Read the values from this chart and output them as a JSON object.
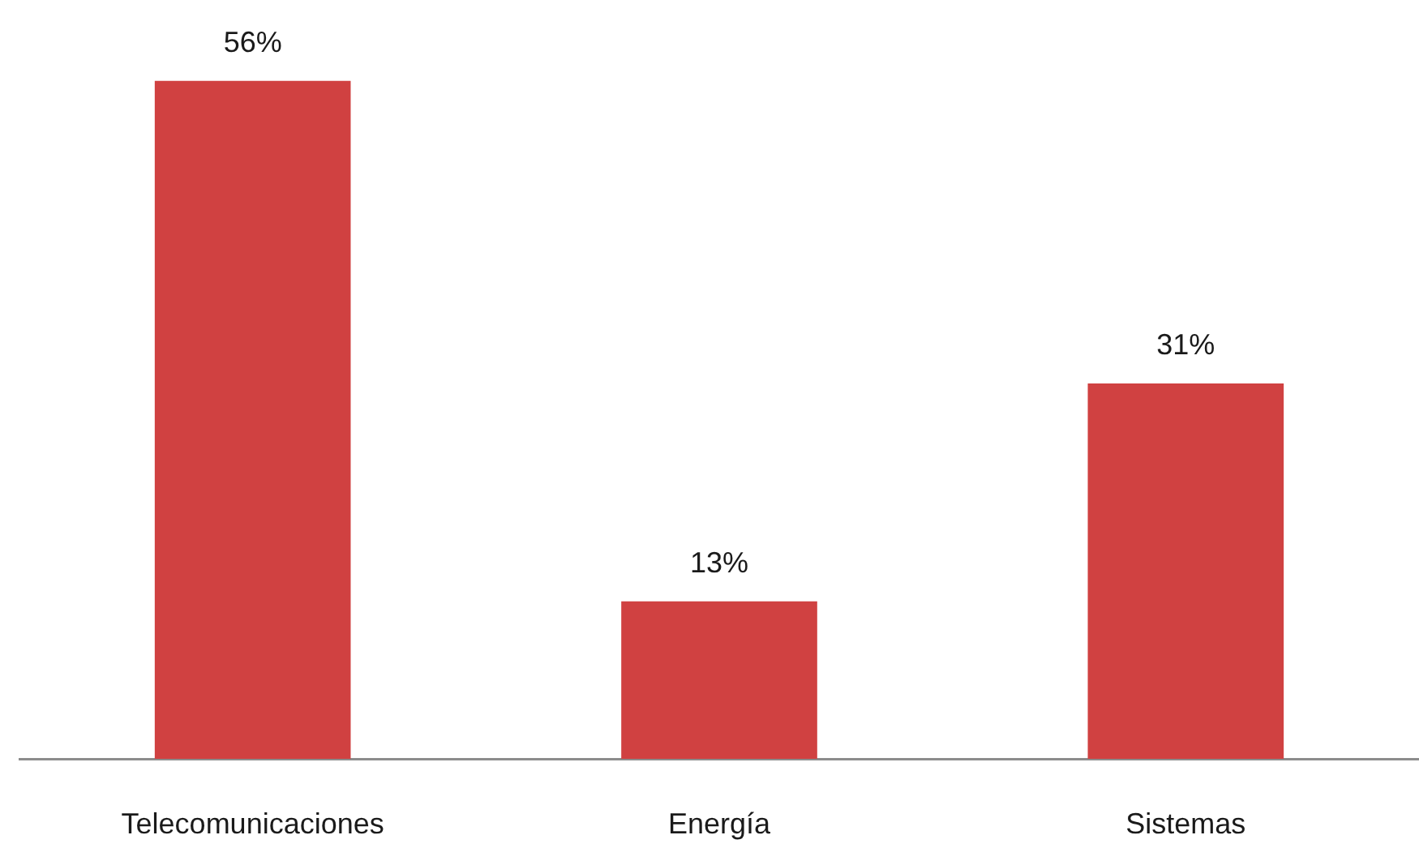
{
  "chart_data": {
    "type": "bar",
    "categories": [
      "Telecomunicaciones",
      "Energía",
      "Sistemas"
    ],
    "values": [
      56,
      13,
      31
    ],
    "value_labels": [
      "56%",
      "13%",
      "31%"
    ],
    "color": "#d04141"
  }
}
